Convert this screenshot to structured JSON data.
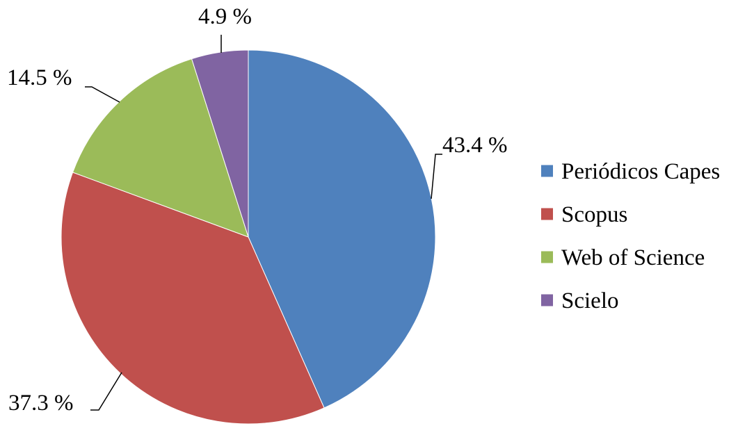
{
  "chart_data": {
    "type": "pie",
    "categories": [
      "Periódicos Capes",
      "Scopus",
      "Web of Science",
      "Scielo"
    ],
    "values": [
      43.4,
      37.3,
      14.5,
      4.9
    ],
    "data_labels": [
      "43.4 %",
      "37.3 %",
      "14.5 %",
      "4.9 %"
    ],
    "colors": [
      "#4f81bd",
      "#c0504d",
      "#9bbb59",
      "#8064a2"
    ],
    "start_angle": "12 o'clock",
    "direction": "clockwise",
    "legend": "right"
  }
}
